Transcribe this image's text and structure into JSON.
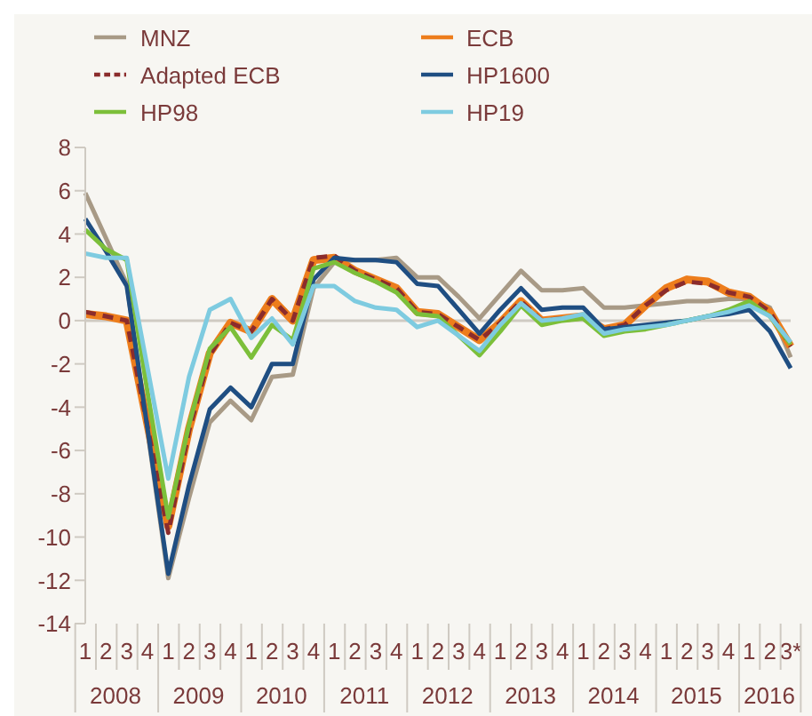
{
  "chart_data": {
    "type": "line",
    "categories": [
      "1",
      "2",
      "3",
      "4",
      "1",
      "2",
      "3",
      "4",
      "1",
      "2",
      "3",
      "4",
      "1",
      "2",
      "3",
      "4",
      "1",
      "2",
      "3",
      "4",
      "1",
      "2",
      "3",
      "4",
      "1",
      "2",
      "3",
      "4",
      "1",
      "2",
      "3",
      "4",
      "1",
      "2",
      "3*"
    ],
    "annotations": [
      "2008",
      "2009",
      "2010",
      "2011",
      "2012",
      "2013",
      "2014",
      "2015",
      "2016"
    ],
    "series": [
      {
        "name": "MNZ",
        "color": "#a89a86",
        "values": [
          5.9,
          3.8,
          1.7,
          -5.1,
          -11.9,
          -8.2,
          -4.7,
          -3.7,
          -4.6,
          -2.6,
          -2.5,
          1.5,
          2.7,
          2.8,
          2.8,
          2.9,
          2.0,
          2.0,
          1.1,
          0.1,
          1.2,
          2.3,
          1.4,
          1.4,
          1.5,
          0.6,
          0.6,
          0.7,
          0.8,
          0.9,
          0.9,
          1.0,
          1.0,
          0.6,
          -1.7
        ]
      },
      {
        "name": "ECB",
        "color": "#ed7d1c",
        "values": [
          0.3,
          0.2,
          0.0,
          -4.8,
          -9.5,
          -5.0,
          -1.5,
          -0.1,
          -0.5,
          1.0,
          0.0,
          2.8,
          2.9,
          2.3,
          1.9,
          1.5,
          0.4,
          0.3,
          -0.3,
          -0.9,
          -0.1,
          0.9,
          0.0,
          0.1,
          0.2,
          -0.4,
          -0.2,
          0.7,
          1.5,
          1.9,
          1.8,
          1.3,
          1.1,
          0.4,
          -1.2
        ]
      },
      {
        "name": "Adapted ECB",
        "color": "#8b2c2c",
        "line_style": "dashed",
        "values": [
          0.4,
          0.2,
          0.0,
          -4.9,
          -9.8,
          -5.1,
          -1.6,
          -0.1,
          -0.5,
          1.0,
          0.0,
          2.9,
          3.0,
          2.3,
          1.9,
          1.5,
          0.4,
          0.3,
          -0.3,
          -0.9,
          -0.1,
          0.9,
          0.0,
          0.1,
          0.2,
          -0.4,
          -0.2,
          0.7,
          1.4,
          1.8,
          1.7,
          1.3,
          1.1,
          0.4,
          -1.2
        ]
      },
      {
        "name": "HP1600",
        "color": "#1f4e82",
        "values": [
          4.7,
          3.2,
          1.6,
          -5.0,
          -11.7,
          -7.6,
          -4.1,
          -3.1,
          -4.0,
          -2.0,
          -2.0,
          1.9,
          2.9,
          2.8,
          2.8,
          2.7,
          1.7,
          1.6,
          0.5,
          -0.6,
          0.5,
          1.5,
          0.5,
          0.6,
          0.6,
          -0.4,
          -0.3,
          -0.2,
          -0.1,
          0.0,
          0.2,
          0.3,
          0.5,
          -0.5,
          -2.2
        ]
      },
      {
        "name": "HP98",
        "color": "#7cbf3a",
        "values": [
          4.2,
          3.3,
          2.8,
          -3.3,
          -9.1,
          -4.8,
          -1.3,
          -0.3,
          -1.7,
          -0.2,
          -0.9,
          2.4,
          2.7,
          2.2,
          1.8,
          1.3,
          0.3,
          0.2,
          -0.7,
          -1.6,
          -0.5,
          0.7,
          -0.2,
          0.0,
          0.1,
          -0.7,
          -0.5,
          -0.4,
          -0.2,
          0.0,
          0.2,
          0.5,
          0.9,
          0.2,
          -1.1
        ]
      },
      {
        "name": "HP19",
        "color": "#7ecbe0",
        "values": [
          3.1,
          2.9,
          2.9,
          -2.2,
          -7.3,
          -2.6,
          0.5,
          1.0,
          -0.8,
          0.1,
          -1.1,
          1.6,
          1.6,
          0.9,
          0.6,
          0.5,
          -0.3,
          0.0,
          -0.7,
          -1.4,
          -0.2,
          0.8,
          0.0,
          0.1,
          0.3,
          -0.6,
          -0.4,
          -0.3,
          -0.2,
          0.0,
          0.2,
          0.4,
          0.7,
          0.2,
          -1.0
        ]
      }
    ],
    "ylim": [
      -14,
      8
    ],
    "yticks": [
      -14,
      -12,
      -10,
      -8,
      -6,
      -4,
      -2,
      0,
      2,
      4,
      6,
      8
    ],
    "grid": false,
    "ref_lines": [
      {
        "axis": "y",
        "value": 0,
        "color": "#cfcac2"
      }
    ],
    "legend": "top",
    "marker": "none"
  }
}
